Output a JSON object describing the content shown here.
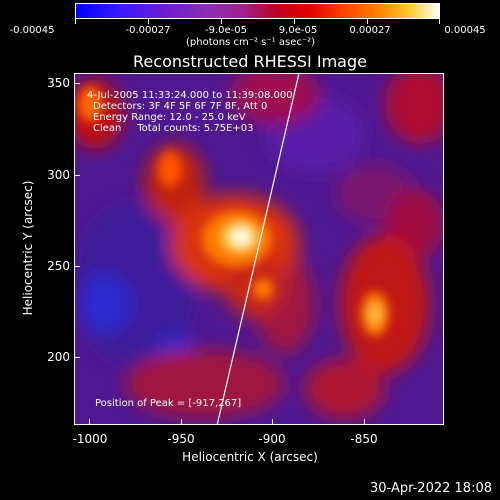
{
  "colorbar": {
    "ticks": [
      "-0.00045",
      "-0.00027",
      "-9.0e-05",
      "9.0e-05",
      "0.00027",
      "0.00045"
    ],
    "units": "(photons cm⁻² s⁻¹ asec⁻²)",
    "colors": [
      "#0000ff",
      "#6a1ccf",
      "#8a2eb8",
      "#c0001a",
      "#ff8800",
      "#ffffff"
    ]
  },
  "title": "Reconstructed RHESSI Image",
  "annotations": {
    "time_range": "4-Jul-2005 11:33:24.000 to 11:39:08.000",
    "detectors": "Detectors: 3F 4F 5F 6F 7F 8F, Att 0",
    "energy": "Energy Range: 12.0 - 25.0 keV",
    "clean": "Clean     Total counts: 5.75E+03",
    "peak": "Position of Peak = [-917,267]"
  },
  "axes": {
    "xlabel": "Heliocentric X (arcsec)",
    "ylabel": "Heliocentric Y (arcsec)",
    "xticks": [
      "-1000",
      "-950",
      "-900",
      "-850"
    ],
    "yticks": [
      "350",
      "300",
      "250",
      "200"
    ]
  },
  "footer_date": "30-Apr-2022 18:08"
}
